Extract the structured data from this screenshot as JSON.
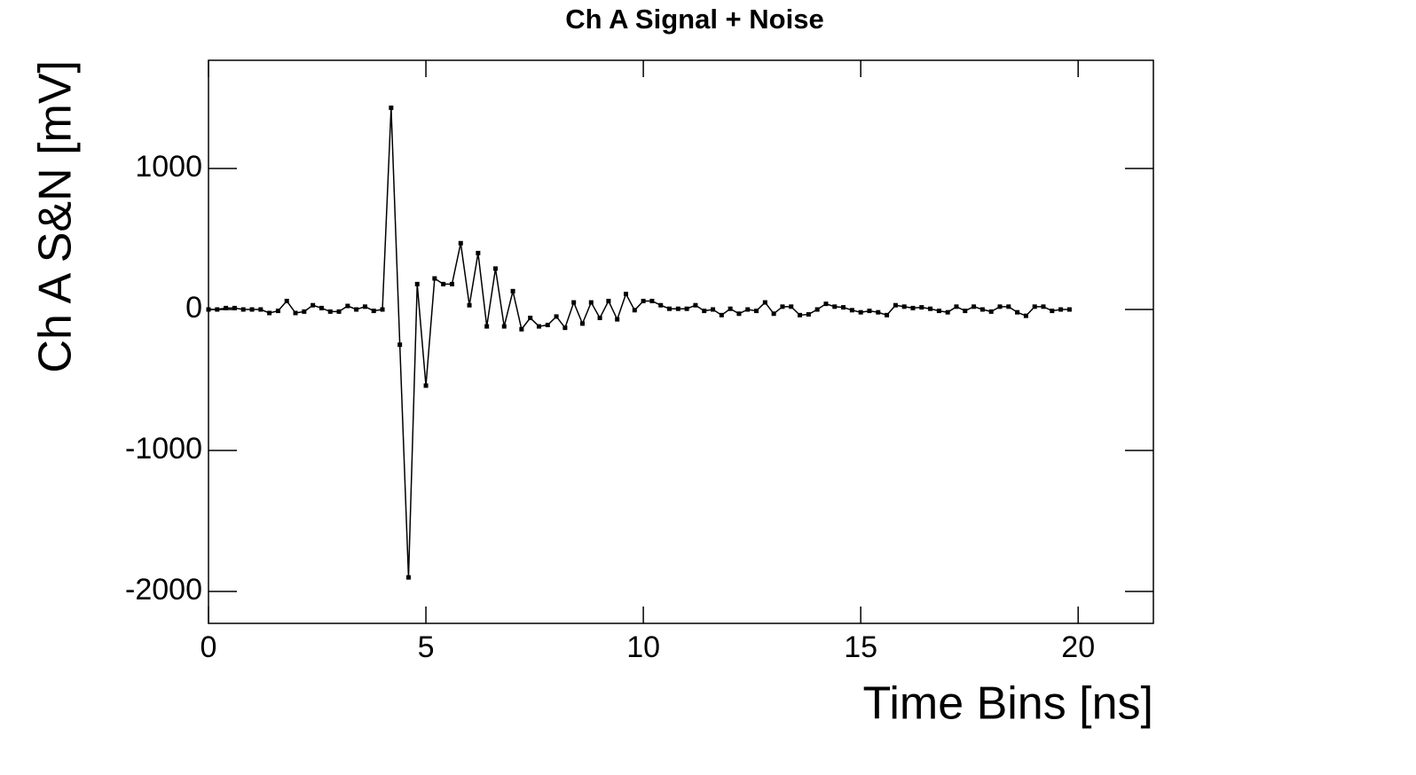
{
  "chart_data": {
    "type": "line",
    "title": "Ch A Signal + Noise",
    "x_label": "Time Bins [ns]",
    "y_label": "Ch A S&N [mV]",
    "xlim": [
      0,
      21.73
    ],
    "ylim": [
      -2226,
      1767
    ],
    "xticks": [
      0,
      5,
      10,
      15,
      20
    ],
    "yticks": [
      -2000,
      -1000,
      0,
      1000
    ],
    "color": "#000000",
    "x": [
      0,
      0.2,
      0.4,
      0.6,
      0.8,
      1,
      1.2,
      1.4,
      1.6,
      1.8,
      2,
      2.2,
      2.4,
      2.6,
      2.8,
      3,
      3.2,
      3.4,
      3.6,
      3.8,
      4,
      4.2,
      4.4,
      4.6,
      4.8,
      5,
      5.2,
      5.4,
      5.6,
      5.8,
      6,
      6.2,
      6.4,
      6.6,
      6.8,
      7,
      7.2,
      7.4,
      7.6,
      7.8,
      8,
      8.2,
      8.4,
      8.6,
      8.8,
      9,
      9.2,
      9.4,
      9.6,
      9.8,
      10,
      10.2,
      10.4,
      10.6,
      10.8,
      11,
      11.2,
      11.4,
      11.6,
      11.8,
      12,
      12.2,
      12.4,
      12.6,
      12.8,
      13,
      13.2,
      13.4,
      13.6,
      13.8,
      14,
      14.2,
      14.4,
      14.6,
      14.8,
      15,
      15.2,
      15.4,
      15.6,
      15.8,
      16,
      16.2,
      16.4,
      16.6,
      16.8,
      17,
      17.2,
      17.4,
      17.6,
      17.8,
      18,
      18.2,
      18.4,
      18.6,
      18.8,
      19,
      19.2,
      19.4,
      19.6,
      19.8
    ],
    "values": [
      0,
      0,
      10,
      10,
      0,
      0,
      0,
      -25,
      -10,
      60,
      -25,
      -15,
      30,
      10,
      -15,
      -15,
      25,
      0,
      20,
      -10,
      0,
      1430,
      -250,
      -1900,
      180,
      -540,
      220,
      180,
      180,
      470,
      30,
      400,
      -120,
      290,
      -120,
      130,
      -140,
      -60,
      -120,
      -110,
      -50,
      -130,
      50,
      -100,
      50,
      -60,
      60,
      -70,
      110,
      -5,
      60,
      60,
      30,
      5,
      5,
      5,
      30,
      -10,
      0,
      -40,
      5,
      -30,
      0,
      -10,
      50,
      -30,
      20,
      20,
      -40,
      -35,
      0,
      40,
      20,
      15,
      -5,
      -20,
      -10,
      -20,
      -40,
      30,
      20,
      10,
      15,
      5,
      -10,
      -20,
      20,
      -10,
      20,
      0,
      -15,
      20,
      20,
      -20,
      -45,
      20,
      20,
      -10,
      0,
      0
    ]
  }
}
